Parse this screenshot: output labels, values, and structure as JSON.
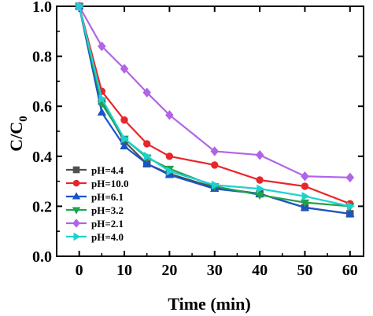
{
  "chart_data": {
    "type": "line",
    "title": "",
    "xlabel": "Time (min)",
    "ylabel": "C/C",
    "ylabel_subscript": "0",
    "xlim": [
      -5,
      63
    ],
    "ylim": [
      0,
      1.0
    ],
    "xticks": [
      0,
      10,
      20,
      30,
      40,
      50,
      60
    ],
    "yticks": [
      0.0,
      0.2,
      0.4,
      0.6,
      0.8,
      1.0
    ],
    "xtick_labels": [
      "0",
      "10",
      "20",
      "30",
      "40",
      "50",
      "60"
    ],
    "ytick_labels": [
      "0.0",
      "0.2",
      "0.4",
      "0.6",
      "0.8",
      "1.0"
    ],
    "x": [
      0,
      5,
      10,
      15,
      20,
      30,
      40,
      50,
      60
    ],
    "grid": false,
    "legend_position": "bottom-left",
    "series": [
      {
        "name": "pH=4.4",
        "color": "#505050",
        "marker": "square",
        "values": [
          1.0,
          0.62,
          0.46,
          0.37,
          0.33,
          0.275,
          0.25,
          0.195,
          0.17
        ]
      },
      {
        "name": "pH=10.0",
        "color": "#e8262b",
        "marker": "circle",
        "values": [
          1.0,
          0.66,
          0.545,
          0.45,
          0.4,
          0.365,
          0.305,
          0.28,
          0.21
        ]
      },
      {
        "name": "pH=6.1",
        "color": "#1a55c8",
        "marker": "triangle-up",
        "values": [
          1.0,
          0.575,
          0.44,
          0.37,
          0.325,
          0.27,
          0.25,
          0.195,
          0.17
        ]
      },
      {
        "name": "pH=3.2",
        "color": "#1fa24b",
        "marker": "triangle-down",
        "values": [
          1.0,
          0.61,
          0.47,
          0.395,
          0.35,
          0.28,
          0.245,
          0.215,
          0.2
        ]
      },
      {
        "name": "pH=2.1",
        "color": "#b065e6",
        "marker": "diamond",
        "values": [
          1.0,
          0.84,
          0.75,
          0.655,
          0.565,
          0.42,
          0.405,
          0.32,
          0.315
        ]
      },
      {
        "name": "pH=4.0",
        "color": "#1ed1d1",
        "marker": "triangle-right",
        "values": [
          1.0,
          0.63,
          0.47,
          0.4,
          0.34,
          0.285,
          0.27,
          0.24,
          0.2
        ]
      }
    ]
  }
}
